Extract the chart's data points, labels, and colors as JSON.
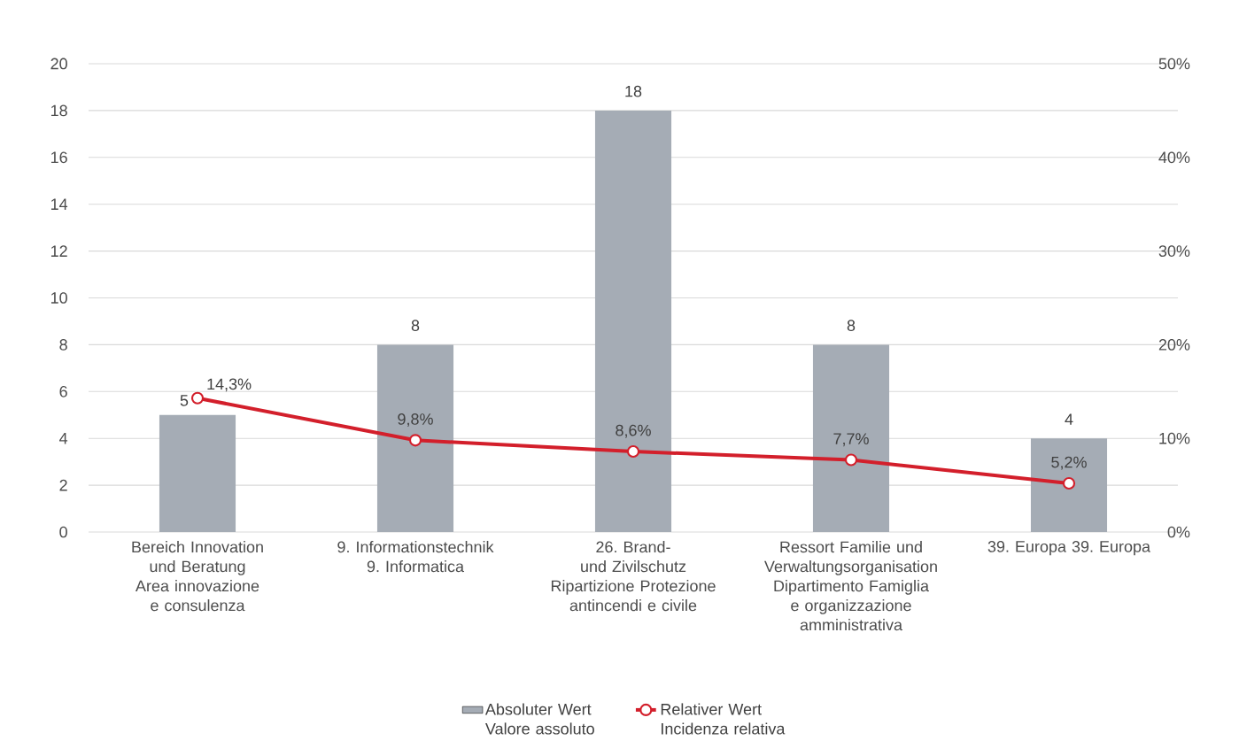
{
  "chart_data": {
    "type": "bar",
    "categories": [
      "Bereich Innovation und Beratung Area innovazione e consulenza",
      "9. Informationstechnik 9. Informatica",
      "26. Brand- und Zivilschutz Ripartizione Protezione antincendi e civile",
      "Ressort Familie und Verwaltungsorganisation Dipartimento Famiglia e organizzazione amministrativa",
      "39. Europa 39. Europa"
    ],
    "series": [
      {
        "name": "Absoluter Wert Valore assoluto",
        "color": "#a5acb5",
        "values": [
          5,
          8,
          18,
          8,
          4
        ],
        "value_labels": [
          "5",
          "8",
          "18",
          "8",
          "4"
        ]
      },
      {
        "name": "Relativer Wert Incidenza relativa",
        "type": "line",
        "axis": "y2",
        "color": "#d31f2b",
        "marker": "circle",
        "values": [
          14.3,
          9.8,
          8.6,
          7.7,
          5.2
        ],
        "value_labels": [
          "14,3%",
          "9,8%",
          "8,6%",
          "7,7%",
          "5,2%"
        ]
      }
    ],
    "ylim": [
      0,
      20
    ],
    "yticks": [
      0,
      2,
      4,
      6,
      8,
      10,
      12,
      14,
      16,
      18,
      20
    ],
    "y2lim": [
      0,
      50
    ],
    "y2ticks": [
      {
        "value": 0,
        "label": "0%"
      },
      {
        "value": 10,
        "label": "10%"
      },
      {
        "value": 20,
        "label": "20%"
      },
      {
        "value": 30,
        "label": "30%"
      },
      {
        "value": 40,
        "label": "40%"
      },
      {
        "value": 50,
        "label": "50%"
      }
    ],
    "grid": "y",
    "legend": "bottom"
  }
}
